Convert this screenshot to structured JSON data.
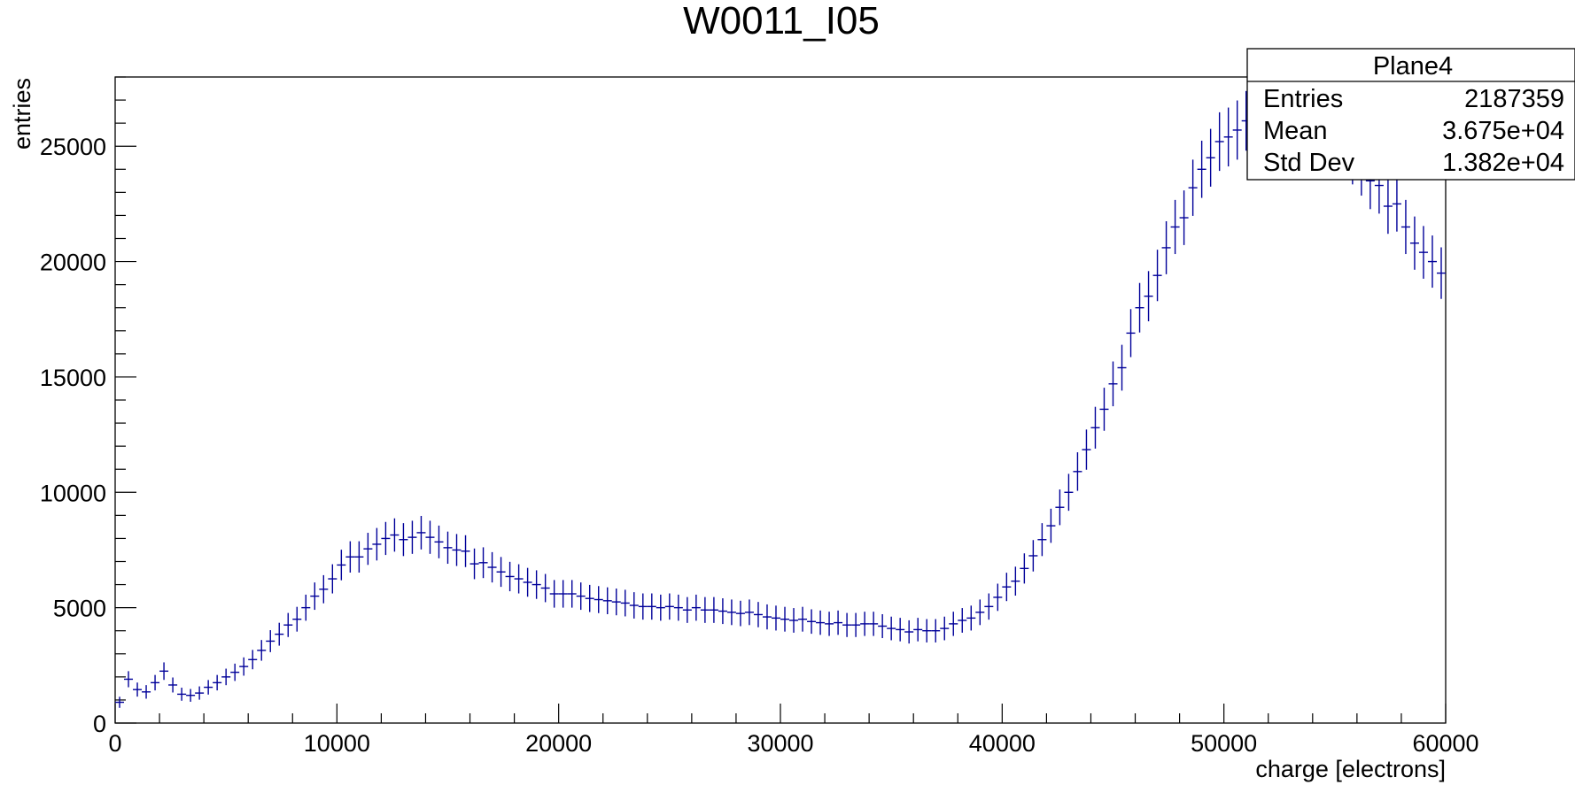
{
  "chart_data": {
    "type": "scatter",
    "title": "W0011_I05",
    "xlabel": "charge [electrons]",
    "ylabel": "entries",
    "xlim": [
      0,
      60000
    ],
    "ylim": [
      0,
      28000
    ],
    "x_ticks": [
      "0",
      "10000",
      "20000",
      "30000",
      "40000",
      "50000",
      "60000"
    ],
    "y_ticks": [
      "0",
      "5000",
      "10000",
      "15000",
      "20000",
      "25000"
    ],
    "grid": false,
    "marker_color": "#000099",
    "bin_width": 400,
    "x": [
      200,
      600,
      1000,
      1400,
      1800,
      2200,
      2600,
      3000,
      3400,
      3800,
      4200,
      4600,
      5000,
      5400,
      5800,
      6200,
      6600,
      7000,
      7400,
      7800,
      8200,
      8600,
      9000,
      9400,
      9800,
      10200,
      10600,
      11000,
      11400,
      11800,
      12200,
      12600,
      13000,
      13400,
      13800,
      14200,
      14600,
      15000,
      15400,
      15800,
      16200,
      16600,
      17000,
      17400,
      17800,
      18200,
      18600,
      19000,
      19400,
      19800,
      20200,
      20600,
      21000,
      21400,
      21800,
      22200,
      22600,
      23000,
      23400,
      23800,
      24200,
      24600,
      25000,
      25400,
      25800,
      26200,
      26600,
      27000,
      27400,
      27800,
      28200,
      28600,
      29000,
      29400,
      29800,
      30200,
      30600,
      31000,
      31400,
      31800,
      32200,
      32600,
      33000,
      33400,
      33800,
      34200,
      34600,
      35000,
      35400,
      35800,
      36200,
      36600,
      37000,
      37400,
      37800,
      38200,
      38600,
      39000,
      39400,
      39800,
      40200,
      40600,
      41000,
      41400,
      41800,
      42200,
      42600,
      43000,
      43400,
      43800,
      44200,
      44600,
      45000,
      45400,
      45800,
      46200,
      46600,
      47000,
      47400,
      47800,
      48200,
      48600,
      49000,
      49400,
      49800,
      50200,
      50600,
      51000,
      51400,
      51800,
      52200,
      52600,
      53000,
      53400,
      53800,
      54200,
      54600,
      55000,
      55400,
      55800,
      56200,
      56600,
      57000,
      57400,
      57800,
      58200,
      58600,
      59000,
      59400,
      59800
    ],
    "y": [
      900,
      1900,
      1450,
      1350,
      1750,
      2250,
      1650,
      1250,
      1200,
      1300,
      1550,
      1750,
      2000,
      2200,
      2450,
      2750,
      3150,
      3550,
      3850,
      4250,
      4500,
      5000,
      5500,
      5800,
      6250,
      6850,
      7200,
      7200,
      7550,
      7750,
      8000,
      8150,
      7950,
      8050,
      8250,
      8050,
      7850,
      7600,
      7500,
      7450,
      6900,
      6950,
      6750,
      6550,
      6350,
      6250,
      6100,
      6000,
      5850,
      5600,
      5600,
      5600,
      5500,
      5400,
      5350,
      5300,
      5250,
      5200,
      5100,
      5050,
      5050,
      5000,
      5050,
      5000,
      4900,
      5000,
      4900,
      4900,
      4850,
      4800,
      4750,
      4800,
      4700,
      4600,
      4550,
      4500,
      4450,
      4500,
      4400,
      4350,
      4300,
      4350,
      4250,
      4250,
      4300,
      4300,
      4200,
      4100,
      4050,
      3950,
      4050,
      4000,
      4000,
      4100,
      4300,
      4450,
      4550,
      4800,
      5050,
      5450,
      5900,
      6150,
      6700,
      7250,
      7950,
      8550,
      9350,
      10000,
      10900,
      11850,
      12800,
      13600,
      14700,
      15400,
      16900,
      18000,
      18500,
      19400,
      20600,
      21500,
      21900,
      23200,
      24000,
      24500,
      25200,
      25400,
      25700,
      26100,
      26200,
      26500,
      26700,
      26700,
      26600,
      26500,
      26400,
      25800,
      25800,
      25300,
      24900,
      24600,
      24100,
      23500,
      23300,
      22400,
      22500,
      21500,
      20800,
      20400,
      20000,
      19500
    ],
    "series": []
  },
  "stats_box": {
    "title": "Plane4",
    "rows": [
      {
        "label": "Entries",
        "value": "2187359"
      },
      {
        "label": "Mean",
        "value": "3.675e+04"
      },
      {
        "label": "Std Dev",
        "value": "1.382e+04"
      }
    ]
  }
}
